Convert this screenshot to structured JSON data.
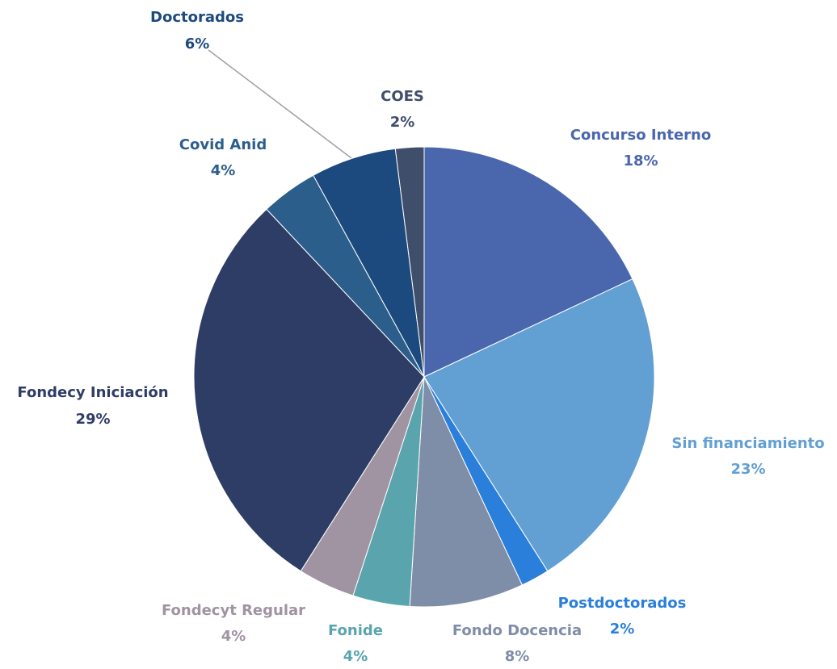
{
  "chart_data": {
    "type": "pie",
    "categories": [
      "Concurso Interno",
      "Sin financiamiento",
      "Postdoctorados",
      "Fondo Docencia",
      "Fonide",
      "Fondecyt Regular",
      "Fondecy Iniciación",
      "Covid Anid",
      "Doctorados",
      "COES"
    ],
    "values": [
      18,
      23,
      2,
      8,
      4,
      4,
      29,
      4,
      6,
      2
    ],
    "value_labels": [
      "18%",
      "23%",
      "2%",
      "8%",
      "4%",
      "4%",
      "29%",
      "4%",
      "6%",
      "2%"
    ],
    "colors": [
      "#4a67ae",
      "#629fd2",
      "#2a7fdb",
      "#7f8ea8",
      "#5aa4ae",
      "#a093a2",
      "#2e3d66",
      "#2c5e8c",
      "#1d4a7e",
      "#3f4e6a"
    ]
  }
}
